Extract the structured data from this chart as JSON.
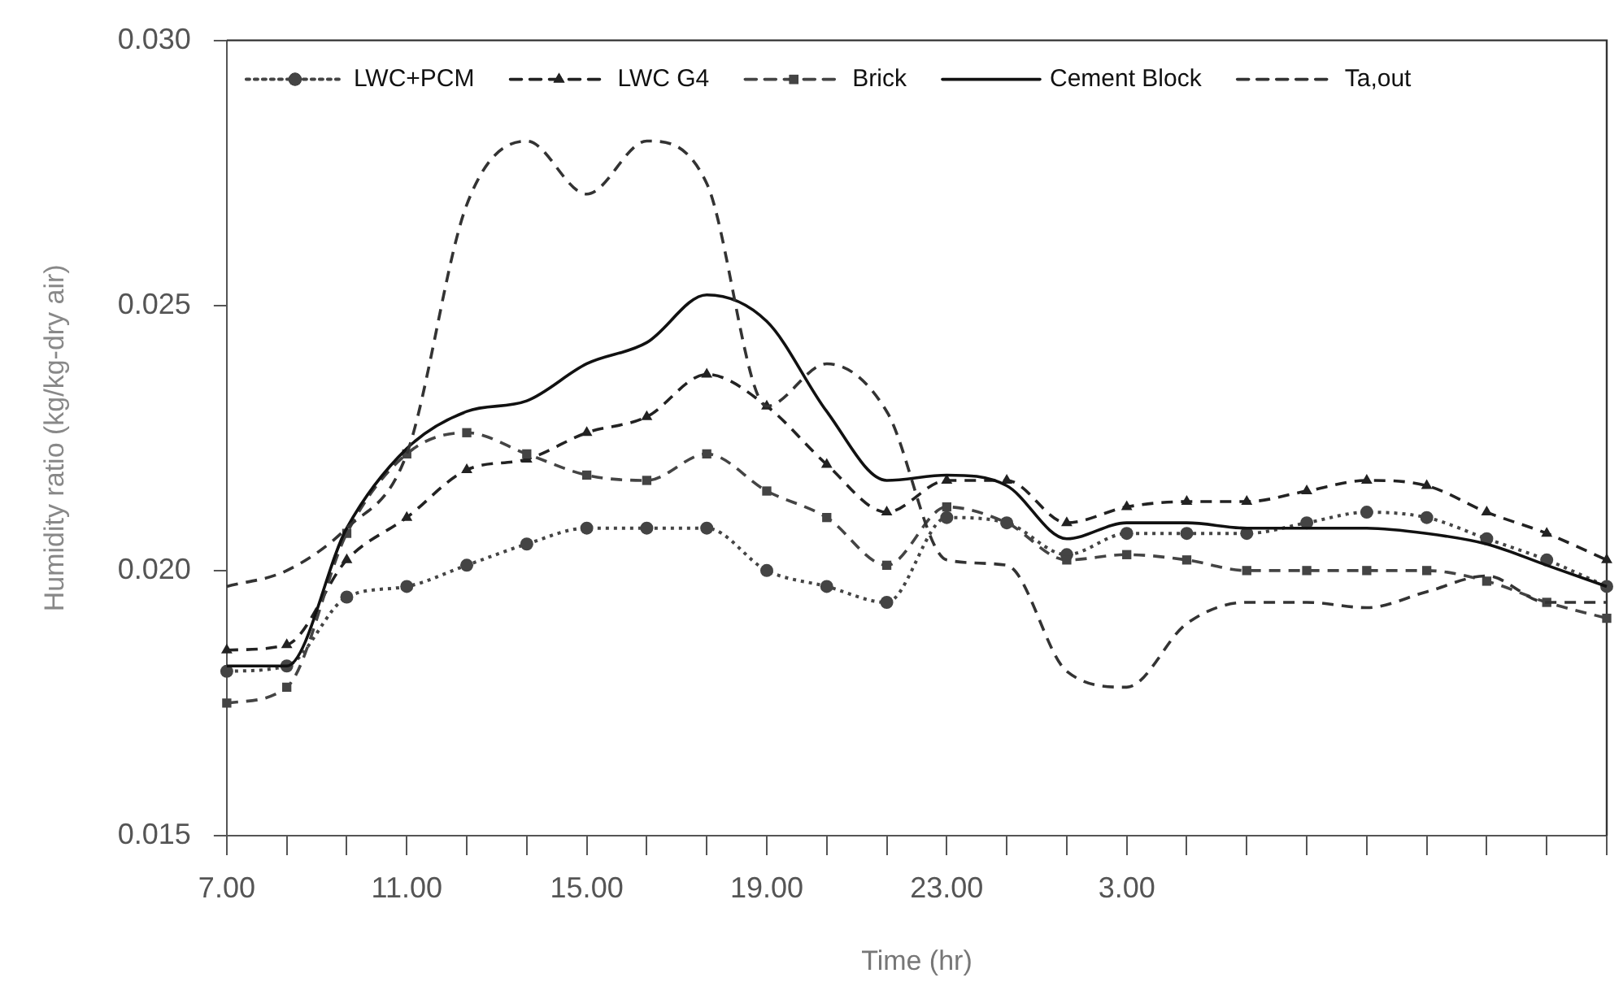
{
  "chart_data": {
    "type": "line",
    "xlabel": "Time (hr)",
    "ylabel": "Humidity ratio (kg/kg-dry air)",
    "categories": [
      "7.00",
      null,
      null,
      "11.00",
      null,
      null,
      "15.00",
      null,
      null,
      "19.00",
      null,
      null,
      "23.00",
      null,
      null,
      "3.00",
      null,
      null,
      null,
      null,
      null,
      null,
      null,
      null
    ],
    "ylim": [
      0.015,
      0.03
    ],
    "yticks": [
      0.015,
      {
        "value": 0.02,
        "label": "0.020"
      },
      0.025,
      {
        "value": 0.03,
        "label": "0.030"
      }
    ],
    "grid": false,
    "legend": "top",
    "series": [
      {
        "name": "LWC+PCM",
        "color": "#444444",
        "marker": "circle",
        "line_style": "dotted",
        "values": [
          0.0181,
          0.0182,
          0.0195,
          0.0197,
          0.0201,
          0.0205,
          0.0208,
          0.0208,
          0.0208,
          0.02,
          0.0197,
          0.0194,
          0.021,
          0.0209,
          0.0203,
          0.0207,
          0.0207,
          0.0207,
          0.0209,
          0.0211,
          0.021,
          0.0206,
          0.0202,
          0.0197
        ]
      },
      {
        "name": "LWC G4",
        "color": "#222222",
        "marker": "triangle",
        "line_style": "dashed",
        "values": [
          0.0185,
          0.0186,
          0.0202,
          0.021,
          0.0219,
          0.0221,
          0.0226,
          0.0229,
          0.0237,
          0.0231,
          0.022,
          0.0211,
          0.0217,
          0.0217,
          0.0209,
          0.0212,
          0.0213,
          0.0213,
          0.0215,
          0.0217,
          0.0216,
          0.0211,
          0.0207,
          0.0202
        ]
      },
      {
        "name": "Brick",
        "color": "#444444",
        "marker": "square",
        "line_style": "dashed",
        "values": [
          0.0175,
          0.0178,
          0.0207,
          0.0222,
          0.0226,
          0.0222,
          0.0218,
          0.0217,
          0.0222,
          0.0215,
          0.021,
          0.0201,
          0.0212,
          0.0209,
          0.0202,
          0.0203,
          0.0202,
          0.02,
          0.02,
          0.02,
          0.02,
          0.0198,
          0.0194,
          0.0191
        ]
      },
      {
        "name": "Cement Block",
        "color": "#111111",
        "marker": "none",
        "line_style": "solid",
        "values": [
          0.0182,
          0.0182,
          0.0208,
          0.0223,
          0.023,
          0.0232,
          0.0239,
          0.0243,
          0.0252,
          0.0247,
          0.023,
          0.0217,
          0.0218,
          0.0216,
          0.0206,
          0.0209,
          0.0209,
          0.0208,
          0.0208,
          0.0208,
          0.0207,
          0.0205,
          0.0201,
          0.0197
        ]
      },
      {
        "name": "Ta,out",
        "color": "#333333",
        "marker": "none",
        "line_style": "dashed",
        "values": [
          0.0197,
          0.02,
          0.0208,
          0.0222,
          0.0269,
          0.0281,
          0.0271,
          0.0281,
          0.0273,
          0.0231,
          0.0239,
          0.023,
          0.0202,
          0.0201,
          0.0181,
          0.0178,
          0.019,
          0.0194,
          0.0194,
          0.0193,
          0.0196,
          0.0199,
          0.0194,
          0.0194
        ]
      }
    ]
  }
}
